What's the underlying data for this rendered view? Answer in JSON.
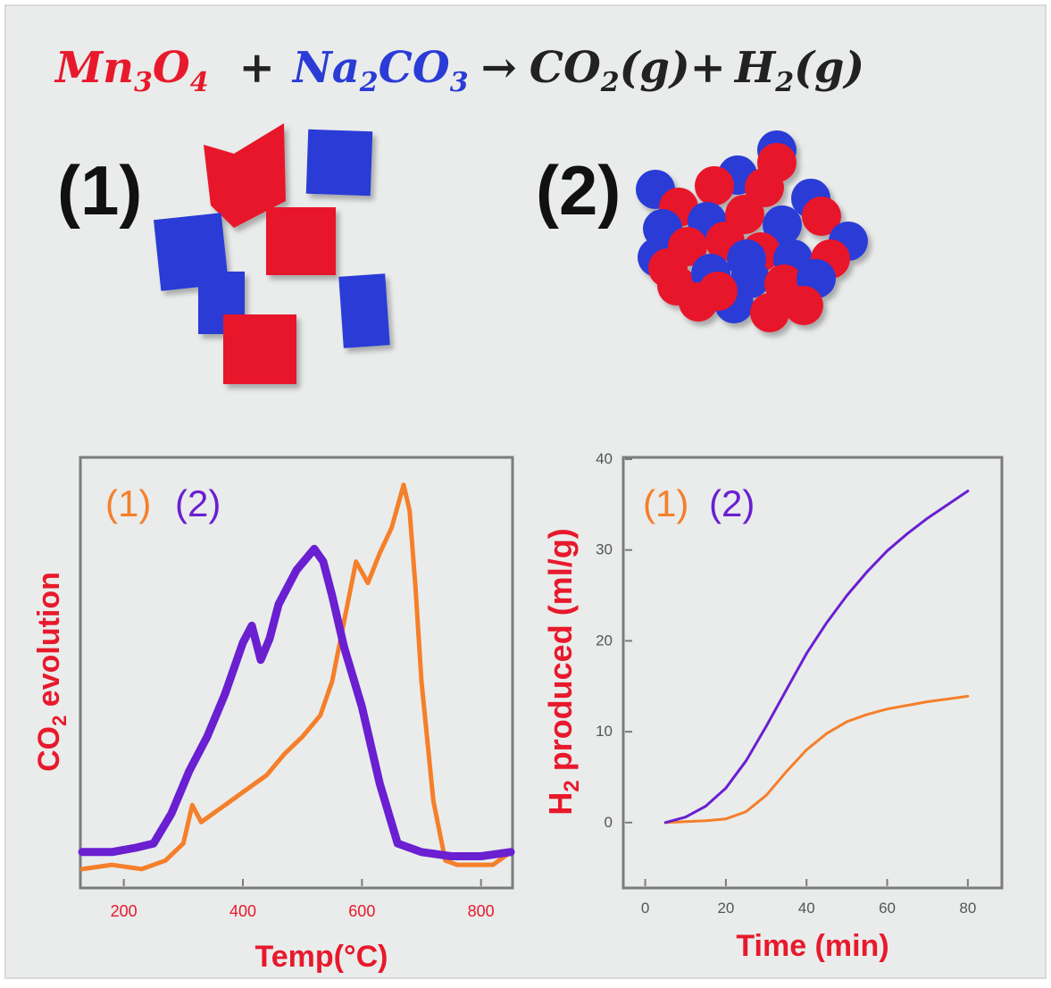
{
  "equation": {
    "reactant1": "Mn",
    "reactant1_sub1": "3",
    "reactant1_mid": "O",
    "reactant1_sub2": "4",
    "plus": "+",
    "reactant2": "Na",
    "reactant2_sub1": "2",
    "reactant2_mid": "CO",
    "reactant2_sub2": "3",
    "arrow": "→",
    "product1": "CO",
    "product1_sub": "2",
    "product1_state": "(g)+",
    "product2": "H",
    "product2_sub": "2",
    "product2_state": "(g)"
  },
  "illustrations": {
    "label_1": "(1)",
    "label_2": "(2)"
  },
  "colors": {
    "red": "#e8192c",
    "blue": "#2a3bd6",
    "orange": "#f57f2a",
    "purple": "#6a1fd1",
    "axis_label": "#e8192c",
    "background": "#e9eceb"
  },
  "chart_data": [
    {
      "type": "line",
      "xlabel": "Temp(°C)",
      "ylabel": "CO",
      "ylabel_sub": "2",
      "ylabel_rest": " evolution",
      "xlim": [
        130,
        850
      ],
      "ylim": [
        0,
        1
      ],
      "xticks": [
        200,
        400,
        600,
        800
      ],
      "yticks": [],
      "legend": [
        {
          "label": "(1)",
          "color": "#f57f2a"
        },
        {
          "label": "(2)",
          "color": "#6a1fd1"
        }
      ],
      "series": [
        {
          "name": "(1)",
          "color": "#f57f2a",
          "x": [
            130,
            180,
            230,
            270,
            300,
            315,
            330,
            360,
            400,
            440,
            470,
            500,
            530,
            550,
            570,
            590,
            610,
            630,
            650,
            670,
            680,
            690,
            700,
            720,
            740,
            760,
            790,
            820,
            850
          ],
          "y": [
            0.04,
            0.05,
            0.04,
            0.06,
            0.1,
            0.19,
            0.15,
            0.18,
            0.22,
            0.26,
            0.31,
            0.35,
            0.4,
            0.48,
            0.62,
            0.76,
            0.71,
            0.78,
            0.84,
            0.94,
            0.88,
            0.7,
            0.48,
            0.2,
            0.06,
            0.05,
            0.05,
            0.05,
            0.08
          ]
        },
        {
          "name": "(2)",
          "color": "#6a1fd1",
          "x": [
            130,
            180,
            220,
            250,
            280,
            310,
            340,
            370,
            400,
            415,
            430,
            445,
            460,
            490,
            520,
            535,
            550,
            570,
            600,
            630,
            660,
            700,
            750,
            800,
            850
          ],
          "y": [
            0.08,
            0.08,
            0.09,
            0.1,
            0.17,
            0.27,
            0.35,
            0.45,
            0.57,
            0.61,
            0.53,
            0.58,
            0.66,
            0.74,
            0.79,
            0.76,
            0.68,
            0.56,
            0.42,
            0.24,
            0.1,
            0.08,
            0.07,
            0.07,
            0.08
          ]
        }
      ]
    },
    {
      "type": "line",
      "xlabel": "Time (min)",
      "ylabel": "H",
      "ylabel_sub": "2",
      "ylabel_rest": " produced (ml/g)",
      "xlim": [
        -5,
        88
      ],
      "ylim": [
        -7,
        40
      ],
      "xticks": [
        0,
        20,
        40,
        60,
        80
      ],
      "yticks": [
        0,
        10,
        20,
        30,
        40
      ],
      "legend": [
        {
          "label": "(1)",
          "color": "#f57f2a"
        },
        {
          "label": "(2)",
          "color": "#6a1fd1"
        }
      ],
      "series": [
        {
          "name": "(1)",
          "color": "#f57f2a",
          "x": [
            5,
            10,
            15,
            20,
            25,
            30,
            35,
            40,
            45,
            50,
            55,
            60,
            65,
            70,
            75,
            80
          ],
          "y": [
            0.0,
            0.1,
            0.2,
            0.4,
            1.2,
            3.0,
            5.6,
            8.0,
            9.8,
            11.1,
            11.9,
            12.5,
            12.9,
            13.3,
            13.6,
            13.9
          ]
        },
        {
          "name": "(2)",
          "color": "#6a1fd1",
          "x": [
            5,
            10,
            15,
            20,
            25,
            30,
            35,
            40,
            45,
            50,
            55,
            60,
            65,
            70,
            75,
            80
          ],
          "y": [
            0.0,
            0.6,
            1.8,
            3.8,
            6.8,
            10.6,
            14.6,
            18.6,
            22.0,
            25.0,
            27.6,
            29.9,
            31.8,
            33.5,
            35.0,
            36.5
          ]
        }
      ]
    }
  ]
}
